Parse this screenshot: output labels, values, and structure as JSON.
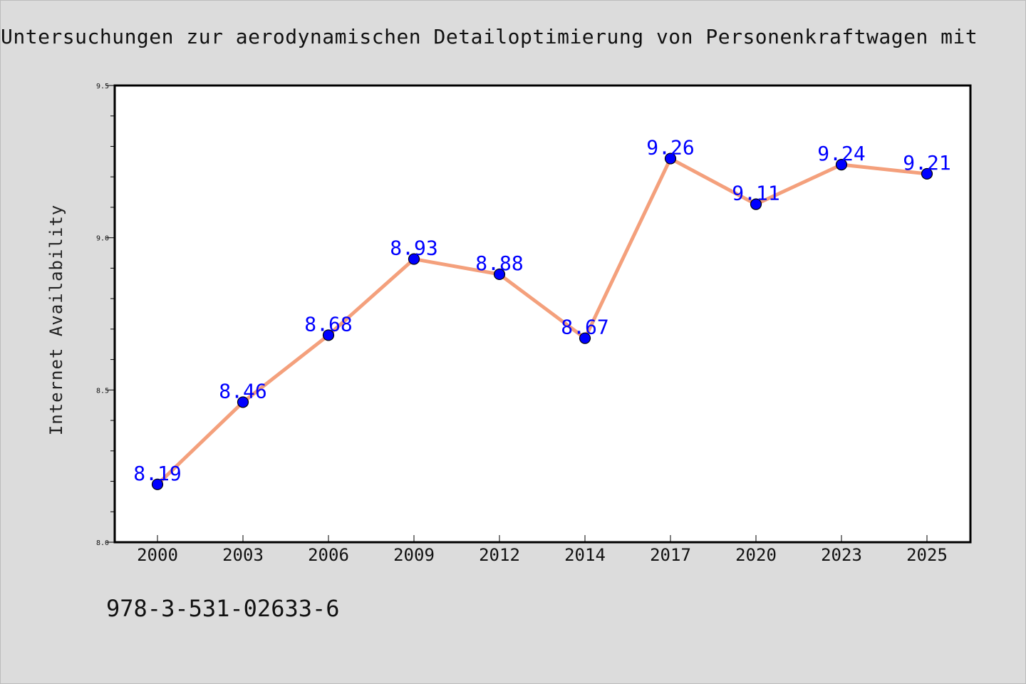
{
  "chart_data": {
    "type": "line",
    "title": "Untersuchungen zur aerodynamischen Detailoptimierung von Personenkraftwagen mit",
    "xlabel": "",
    "ylabel": "Internet Availability",
    "categories": [
      "2000",
      "2003",
      "2006",
      "2009",
      "2012",
      "2014",
      "2017",
      "2020",
      "2023",
      "2025"
    ],
    "values": [
      8.19,
      8.46,
      8.68,
      8.93,
      8.88,
      8.67,
      9.26,
      9.11,
      9.24,
      9.21
    ],
    "data_labels": [
      "8.19",
      "8.46",
      "8.68",
      "8.93",
      "8.88",
      "8.67",
      "9.26",
      "9.11",
      "9.24",
      "9.21"
    ],
    "ylim": [
      8.0,
      9.5
    ],
    "yticks": [
      8.0,
      8.5,
      9.0,
      9.5
    ],
    "ytick_labels": [
      "8.0",
      "8.5",
      "9.0",
      "9.5"
    ],
    "grid": false,
    "legend": "none",
    "colors": {
      "line": "#f4a07c",
      "marker": "#0000ff",
      "label": "#0000ff",
      "plot_bg": "#ffffff",
      "page_bg": "#dcdcdc"
    }
  },
  "footer": {
    "isbn": "978-3-531-02633-6"
  }
}
